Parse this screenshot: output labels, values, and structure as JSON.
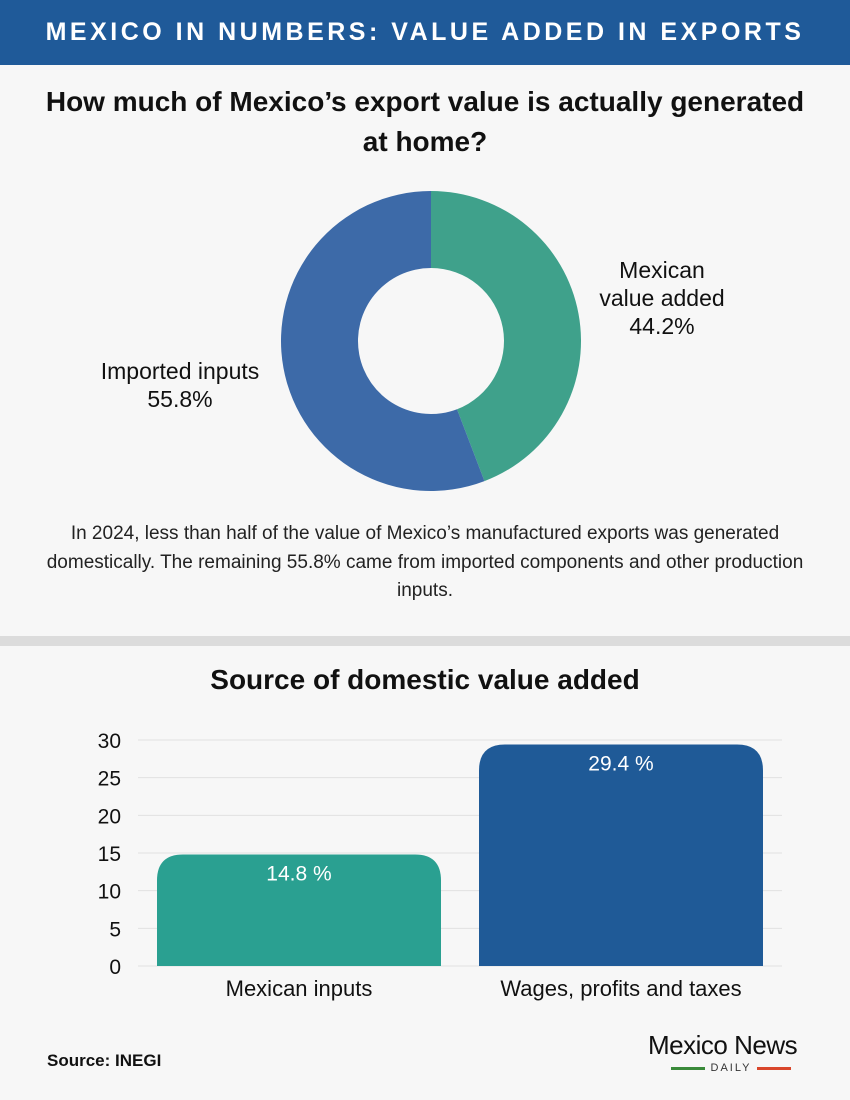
{
  "banner": {
    "title": "MEXICO IN NUMBERS: VALUE ADDED IN EXPORTS"
  },
  "section1": {
    "title": "How much of Mexico’s export value is actually generated at home?",
    "paragraph": "In 2024, less than half of the value of Mexico’s manufactured exports was generated domestically. The remaining 55.8% came from imported components and other production inputs."
  },
  "section2": {
    "title": "Source of domestic value added"
  },
  "footer": {
    "source": "Source: INEGI"
  },
  "logo": {
    "name": "Mexico News",
    "sub": "DAILY"
  },
  "colors": {
    "banner": "#1f5a99",
    "teal": "#3fa18b",
    "blue": "#3d6aa8",
    "bar_teal": "#2aa091",
    "bar_blue": "#1f5a97",
    "logo_green": "#3a8a3a",
    "logo_red": "#d9462b"
  },
  "chart_data": [
    {
      "type": "pie",
      "labels": [
        "Mexican value added",
        "Imported inputs"
      ],
      "values": [
        44.2,
        55.8
      ],
      "value_labels": [
        "44.2%",
        "55.8%"
      ],
      "label_lines": [
        [
          "Mexican",
          "value added",
          "44.2%"
        ],
        [
          "Imported inputs",
          "55.8%"
        ]
      ],
      "donut": true
    },
    {
      "type": "bar",
      "categories": [
        "Mexican inputs",
        "Wages, profits and taxes"
      ],
      "values": [
        14.8,
        29.4
      ],
      "value_labels": [
        "14.8 %",
        "29.4 %"
      ],
      "ylim": [
        0,
        30
      ],
      "yticks": [
        "0",
        "5",
        "10",
        "15",
        "20",
        "25",
        "30"
      ],
      "grid": true
    }
  ]
}
